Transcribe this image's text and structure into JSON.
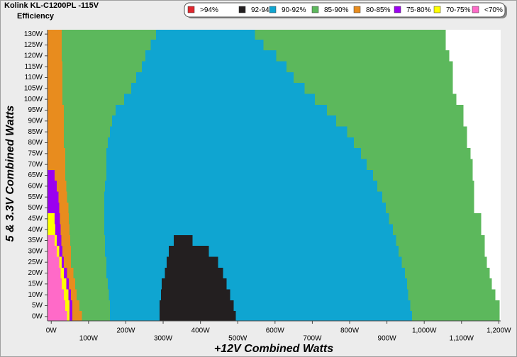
{
  "chart_data": {
    "type": "heatmap",
    "title": "Kolink KL-C1200PL -115V",
    "subtitle": "Efficiency",
    "x_label": "+12V Combined Watts",
    "y_label": "5 & 3.3V Combined Watts",
    "xlim": [
      -10,
      1205
    ],
    "ylim": [
      -2,
      132
    ],
    "xticks": [
      {
        "value": 0,
        "label": "0W"
      },
      {
        "value": 100,
        "label": "100W"
      },
      {
        "value": 200,
        "label": "200W"
      },
      {
        "value": 300,
        "label": "300W"
      },
      {
        "value": 400,
        "label": "400W"
      },
      {
        "value": 500,
        "label": "500W"
      },
      {
        "value": 600,
        "label": "600W"
      },
      {
        "value": 700,
        "label": "700W"
      },
      {
        "value": 800,
        "label": "800W"
      },
      {
        "value": 900,
        "label": "900W"
      },
      {
        "value": 1000,
        "label": "1,000W"
      },
      {
        "value": 1100,
        "label": "1,100W"
      },
      {
        "value": 1200,
        "label": "1,200W"
      }
    ],
    "yticks": [
      {
        "value": 0,
        "label": "0W"
      },
      {
        "value": 5,
        "label": "5W"
      },
      {
        "value": 10,
        "label": "10W"
      },
      {
        "value": 15,
        "label": "15W"
      },
      {
        "value": 20,
        "label": "20W"
      },
      {
        "value": 25,
        "label": "25W"
      },
      {
        "value": 30,
        "label": "30W"
      },
      {
        "value": 35,
        "label": "35W"
      },
      {
        "value": 40,
        "label": "40W"
      },
      {
        "value": 45,
        "label": "45W"
      },
      {
        "value": 50,
        "label": "50W"
      },
      {
        "value": 55,
        "label": "55W"
      },
      {
        "value": 60,
        "label": "60W"
      },
      {
        "value": 65,
        "label": "65W"
      },
      {
        "value": 70,
        "label": "70W"
      },
      {
        "value": 75,
        "label": "75W"
      },
      {
        "value": 80,
        "label": "80W"
      },
      {
        "value": 85,
        "label": "85W"
      },
      {
        "value": 90,
        "label": "90W"
      },
      {
        "value": 95,
        "label": "95W"
      },
      {
        "value": 100,
        "label": "100W"
      },
      {
        "value": 105,
        "label": "105W"
      },
      {
        "value": 110,
        "label": "110W"
      },
      {
        "value": 115,
        "label": "115W"
      },
      {
        "value": 120,
        "label": "120W"
      },
      {
        "value": 125,
        "label": "125W"
      },
      {
        "value": 130,
        "label": "130W"
      }
    ],
    "series": [
      {
        "name": ">94%",
        "color": "#e0282e",
        "cells": []
      },
      {
        "name": "92-94%",
        "color": "#231f20",
        "cells": [
          [
            35,
            328,
            379
          ],
          [
            30,
            315,
            423
          ],
          [
            25,
            309,
            447
          ],
          [
            20,
            305,
            461
          ],
          [
            15,
            296,
            470
          ],
          [
            10,
            294,
            480
          ],
          [
            5,
            290,
            489
          ],
          [
            0,
            290,
            495
          ]
        ]
      },
      {
        "name": "90-92%",
        "color": "#0fa5d1",
        "cells": [
          [
            130,
            281,
            546
          ],
          [
            125,
            267,
            569
          ],
          [
            120,
            252,
            603
          ],
          [
            115,
            243,
            631
          ],
          [
            110,
            228,
            650
          ],
          [
            105,
            214,
            679
          ],
          [
            100,
            195,
            707
          ],
          [
            95,
            173,
            739
          ],
          [
            90,
            163,
            764
          ],
          [
            85,
            157,
            793
          ],
          [
            80,
            152,
            811
          ],
          [
            75,
            148,
            830
          ],
          [
            70,
            148,
            846
          ],
          [
            65,
            148,
            863
          ],
          [
            60,
            144,
            874
          ],
          [
            55,
            142,
            887
          ],
          [
            50,
            142,
            897
          ],
          [
            45,
            142,
            906
          ],
          [
            40,
            142,
            916
          ],
          [
            35,
            144,
            328
          ],
          [
            35,
            379,
            925
          ],
          [
            30,
            144,
            315
          ],
          [
            30,
            423,
            931
          ],
          [
            25,
            148,
            309
          ],
          [
            25,
            447,
            940
          ],
          [
            20,
            148,
            305
          ],
          [
            20,
            461,
            948
          ],
          [
            15,
            152,
            296
          ],
          [
            15,
            470,
            954
          ],
          [
            10,
            154,
            294
          ],
          [
            10,
            480,
            957
          ],
          [
            5,
            157,
            290
          ],
          [
            5,
            489,
            963
          ],
          [
            0,
            157,
            290
          ],
          [
            0,
            495,
            967
          ]
        ]
      },
      {
        "name": "85-90%",
        "color": "#5cb85c",
        "cells": [
          [
            130,
            28,
            281
          ],
          [
            130,
            546,
            1058
          ],
          [
            125,
            28,
            267
          ],
          [
            125,
            569,
            1058
          ],
          [
            120,
            28,
            252
          ],
          [
            120,
            603,
            1067
          ],
          [
            115,
            30,
            243
          ],
          [
            115,
            631,
            1077
          ],
          [
            110,
            30,
            228
          ],
          [
            110,
            650,
            1077
          ],
          [
            105,
            30,
            214
          ],
          [
            105,
            679,
            1077
          ],
          [
            100,
            30,
            195
          ],
          [
            100,
            707,
            1086
          ],
          [
            95,
            34,
            173
          ],
          [
            95,
            739,
            1105
          ],
          [
            90,
            34,
            163
          ],
          [
            90,
            764,
            1105
          ],
          [
            85,
            34,
            157
          ],
          [
            85,
            793,
            1115
          ],
          [
            80,
            34,
            152
          ],
          [
            80,
            811,
            1115
          ],
          [
            75,
            38,
            148
          ],
          [
            75,
            830,
            1124
          ],
          [
            70,
            38,
            148
          ],
          [
            70,
            846,
            1130
          ],
          [
            65,
            38,
            148
          ],
          [
            65,
            863,
            1130
          ],
          [
            60,
            40,
            144
          ],
          [
            60,
            874,
            1134
          ],
          [
            55,
            42,
            142
          ],
          [
            55,
            887,
            1134
          ],
          [
            50,
            46,
            142
          ],
          [
            50,
            897,
            1134
          ],
          [
            45,
            47,
            142
          ],
          [
            45,
            906,
            1153
          ],
          [
            40,
            49,
            142
          ],
          [
            40,
            916,
            1153
          ],
          [
            35,
            51,
            144
          ],
          [
            35,
            925,
            1162
          ],
          [
            30,
            53,
            144
          ],
          [
            30,
            931,
            1162
          ],
          [
            25,
            53,
            148
          ],
          [
            25,
            940,
            1168
          ],
          [
            20,
            59,
            148
          ],
          [
            20,
            948,
            1176
          ],
          [
            15,
            64,
            152
          ],
          [
            15,
            954,
            1181
          ],
          [
            10,
            68,
            154
          ],
          [
            10,
            957,
            1191
          ],
          [
            5,
            76,
            157
          ],
          [
            5,
            963,
            1202
          ],
          [
            0,
            82,
            157
          ],
          [
            0,
            967,
            1202
          ]
        ]
      },
      {
        "name": "80-85%",
        "color": "#e88c1e",
        "cells": [
          [
            130,
            -10,
            28
          ],
          [
            125,
            -10,
            28
          ],
          [
            120,
            -10,
            28
          ],
          [
            115,
            -10,
            30
          ],
          [
            110,
            -10,
            30
          ],
          [
            105,
            -10,
            30
          ],
          [
            100,
            -10,
            30
          ],
          [
            95,
            -10,
            34
          ],
          [
            90,
            -10,
            34
          ],
          [
            85,
            -10,
            34
          ],
          [
            80,
            -10,
            34
          ],
          [
            75,
            -10,
            38
          ],
          [
            70,
            -10,
            38
          ],
          [
            65,
            9,
            38
          ],
          [
            60,
            15,
            40
          ],
          [
            55,
            19,
            42
          ],
          [
            50,
            21,
            46
          ],
          [
            45,
            23,
            47
          ],
          [
            40,
            25,
            49
          ],
          [
            35,
            27,
            51
          ],
          [
            30,
            30,
            53
          ],
          [
            25,
            34,
            53
          ],
          [
            20,
            42,
            59
          ],
          [
            15,
            47,
            64
          ],
          [
            10,
            53,
            68
          ],
          [
            5,
            57,
            76
          ],
          [
            0,
            57,
            82
          ]
        ]
      },
      {
        "name": "75-80%",
        "color": "#9b00f0",
        "cells": [
          [
            65,
            -10,
            9
          ],
          [
            60,
            -10,
            15
          ],
          [
            55,
            -10,
            19
          ],
          [
            50,
            -10,
            21
          ],
          [
            45,
            9,
            23
          ],
          [
            40,
            11,
            25
          ],
          [
            35,
            15,
            27
          ],
          [
            30,
            21,
            30
          ],
          [
            25,
            28,
            34
          ],
          [
            20,
            34,
            42
          ],
          [
            15,
            40,
            47
          ],
          [
            10,
            46,
            53
          ],
          [
            5,
            49,
            57
          ],
          [
            0,
            49,
            57
          ]
        ]
      },
      {
        "name": "70-75%",
        "color": "#ffff00",
        "cells": [
          [
            45,
            -10,
            9
          ],
          [
            40,
            -10,
            11
          ],
          [
            35,
            9,
            15
          ],
          [
            30,
            15,
            21
          ],
          [
            25,
            21,
            28
          ],
          [
            20,
            25,
            34
          ],
          [
            15,
            28,
            40
          ],
          [
            10,
            34,
            46
          ],
          [
            5,
            38,
            49
          ],
          [
            0,
            42,
            49
          ]
        ]
      },
      {
        "name": "<70%",
        "color": "#ff6ac8",
        "cells": [
          [
            35,
            -10,
            9
          ],
          [
            30,
            -10,
            15
          ],
          [
            25,
            -10,
            21
          ],
          [
            20,
            -10,
            25
          ],
          [
            15,
            -10,
            28
          ],
          [
            10,
            -10,
            34
          ],
          [
            5,
            -10,
            38
          ],
          [
            0,
            -10,
            42
          ]
        ]
      }
    ]
  }
}
